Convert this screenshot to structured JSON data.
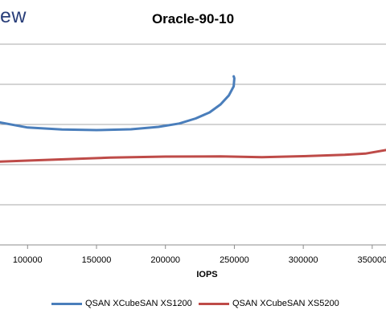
{
  "logo_text": "ew",
  "chart_data": {
    "type": "line",
    "title": "Oracle-90-10",
    "xlabel": "IOPS",
    "ylabel": "",
    "xlim": [
      80000,
      360000
    ],
    "x_ticks": [
      100000,
      150000,
      200000,
      250000,
      300000,
      350000
    ],
    "x_tick_labels": [
      "100000",
      "150000",
      "200000",
      "250000",
      "300000",
      "350000"
    ],
    "grid": "horizontal",
    "legend_position": "bottom",
    "series": [
      {
        "name": "QSAN XCubeSAN XS1200",
        "color": "#4a7ebb",
        "points": [
          [
            80000,
            0.61
          ],
          [
            100000,
            0.585
          ],
          [
            125000,
            0.575
          ],
          [
            150000,
            0.572
          ],
          [
            175000,
            0.576
          ],
          [
            195000,
            0.588
          ],
          [
            210000,
            0.605
          ],
          [
            222000,
            0.63
          ],
          [
            232000,
            0.66
          ],
          [
            240000,
            0.7
          ],
          [
            246000,
            0.745
          ],
          [
            249500,
            0.79
          ],
          [
            250000,
            0.83
          ],
          [
            249500,
            0.84
          ]
        ]
      },
      {
        "name": "QSAN XCubeSAN XS5200",
        "color": "#be4b48",
        "points": [
          [
            80000,
            0.415
          ],
          [
            120000,
            0.425
          ],
          [
            160000,
            0.435
          ],
          [
            200000,
            0.44
          ],
          [
            240000,
            0.441
          ],
          [
            270000,
            0.437
          ],
          [
            300000,
            0.442
          ],
          [
            330000,
            0.449
          ],
          [
            345000,
            0.455
          ],
          [
            360000,
            0.473
          ]
        ]
      }
    ]
  }
}
